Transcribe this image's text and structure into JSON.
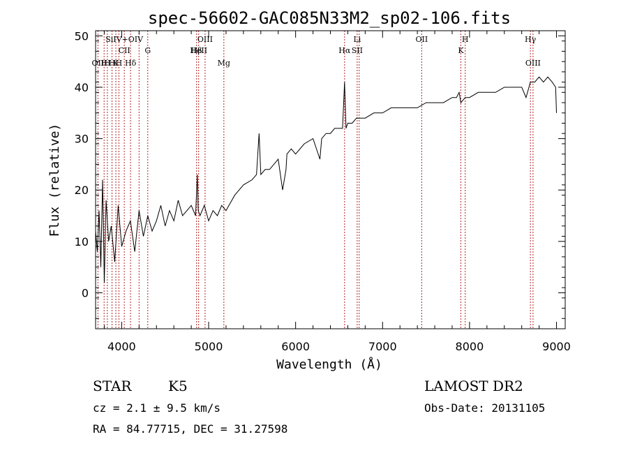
{
  "chart_data": {
    "type": "line",
    "title": "spec-56602-GAC085N33M2_sp02-106.fits",
    "xlabel": "Wavelength (Å)",
    "ylabel": "Flux (relative)",
    "xlim": [
      3700,
      9100
    ],
    "ylim": [
      -7,
      51
    ],
    "xticks": [
      4000,
      5000,
      6000,
      7000,
      8000,
      9000
    ],
    "yticks": [
      0,
      10,
      20,
      30,
      40,
      50
    ],
    "grid": false,
    "series": [
      {
        "x": [
          3700,
          3720,
          3740,
          3760,
          3780,
          3800,
          3820,
          3850,
          3880,
          3920,
          3960,
          4000,
          4050,
          4100,
          4150,
          4200,
          4250,
          4300,
          4350,
          4400,
          4450,
          4500,
          4550,
          4600,
          4650,
          4700,
          4750,
          4800,
          4850,
          4870,
          4880,
          4900,
          4950,
          5000,
          5050,
          5100,
          5150,
          5200,
          5300,
          5400,
          5500,
          5550,
          5580,
          5600,
          5650,
          5700,
          5750,
          5800,
          5850,
          5890,
          5900,
          5950,
          6000,
          6100,
          6200,
          6280,
          6300,
          6350,
          6400,
          6450,
          6500,
          6540,
          6563,
          6580,
          6600,
          6650,
          6700,
          6800,
          6900,
          7000,
          7100,
          7200,
          7300,
          7400,
          7500,
          7600,
          7700,
          7800,
          7850,
          7880,
          7900,
          7950,
          8000,
          8100,
          8200,
          8300,
          8400,
          8500,
          8600,
          8650,
          8700,
          8750,
          8800,
          8850,
          8900,
          8950,
          8990,
          9000
        ],
        "y": [
          12,
          8,
          16,
          5,
          22,
          2,
          18,
          10,
          13,
          6,
          17,
          9,
          12,
          14,
          8,
          16,
          11,
          15,
          12,
          14,
          17,
          13,
          16,
          14,
          18,
          15,
          16,
          17,
          15,
          23,
          16,
          15,
          17,
          14,
          16,
          15,
          17,
          16,
          19,
          21,
          22,
          23,
          31,
          23,
          24,
          24,
          25,
          26,
          20,
          24,
          27,
          28,
          27,
          29,
          30,
          26,
          30,
          31,
          31,
          32,
          32,
          32,
          41,
          32,
          33,
          33,
          34,
          34,
          35,
          35,
          36,
          36,
          36,
          36,
          37,
          37,
          37,
          38,
          38,
          39,
          37,
          38,
          38,
          39,
          39,
          39,
          40,
          40,
          40,
          38,
          41,
          41,
          42,
          41,
          42,
          41,
          40,
          35
        ]
      }
    ],
    "lines": [
      {
        "x": 3727,
        "labels": [
          "OII"
        ],
        "row": 3
      },
      {
        "x": 3798,
        "labels": [
          "H"
        ],
        "row": 3
      },
      {
        "x": 3835,
        "labels": [
          "H"
        ],
        "row": 3
      },
      {
        "x": 3889,
        "labels": [
          "H"
        ],
        "row": 3
      },
      {
        "x": 3933,
        "labels": [
          "K"
        ],
        "row": 3
      },
      {
        "x": 3968,
        "labels": [
          "H"
        ],
        "row": 3
      },
      {
        "x": 4030,
        "labels": [
          "SiIV+OIV",
          "CII"
        ],
        "row": 1
      },
      {
        "x": 4102,
        "labels": [
          "Hδ"
        ],
        "row": 3
      },
      {
        "x": 4200,
        "labels": [],
        "row": 0
      },
      {
        "x": 4300,
        "labels": [
          "G"
        ],
        "row": 2
      },
      {
        "x": 4861,
        "labels": [
          "Hβ"
        ],
        "row": 2
      },
      {
        "x": 4885,
        "labels": [
          "HeII"
        ],
        "row": 2
      },
      {
        "x": 4959,
        "labels": [
          "OIII"
        ],
        "row": 1
      },
      {
        "x": 5175,
        "labels": [
          "Mg"
        ],
        "row": 3
      },
      {
        "x": 6563,
        "labels": [
          "Hα"
        ],
        "row": 2
      },
      {
        "x": 6708,
        "labels": [
          "Li",
          "SII"
        ],
        "row": 1
      },
      {
        "x": 6731,
        "labels": [],
        "row": 0
      },
      {
        "x": 7450,
        "labels": [
          "OII"
        ],
        "row": 1
      },
      {
        "x": 7900,
        "labels": [
          "K"
        ],
        "row": 2
      },
      {
        "x": 7950,
        "labels": [
          "H"
        ],
        "row": 1
      },
      {
        "x": 8700,
        "labels": [
          "Hγ"
        ],
        "row": 1
      },
      {
        "x": 8730,
        "labels": [
          "OIII"
        ],
        "row": 3
      }
    ]
  },
  "info": {
    "class_label": "STAR",
    "subclass_label": "K5",
    "survey_label": "LAMOST DR2",
    "cz_text": "cz = 2.1 ± 9.5 km/s",
    "obs_date_text": "Obs-Date: 20131105",
    "coords_text": "RA =  84.77715, DEC =  31.27598"
  },
  "colors": {
    "spectrum": "#000000",
    "line_marker": "#b22222"
  }
}
